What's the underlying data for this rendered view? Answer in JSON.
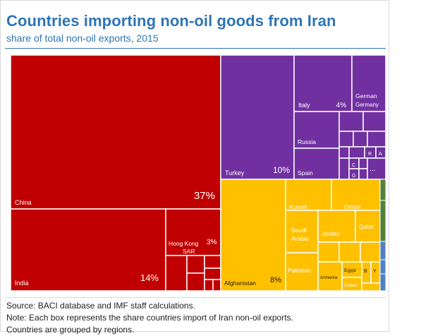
{
  "title": "Countries importing non-oil goods from Iran",
  "subtitle": "share of total non-oil exports, 2015",
  "notes": {
    "source": "Source: BACI database and IMF staff calculations.",
    "note": "Note: Each box represents the share countries import of Iran non-oil exports.",
    "grouping": "Countries are grouped by regions."
  },
  "colors": {
    "east_asia": "#c00000",
    "europe_central_asia": "#7030a0",
    "middle_east_north_africa": "#ffc000",
    "other_green": "#548235",
    "other_blue": "#4f81bd"
  },
  "chart_data": {
    "type": "treemap",
    "title": "Countries importing non-oil goods from Iran",
    "subtitle": "share of total non-oil exports, 2015",
    "groups": [
      {
        "group": "east_asia",
        "items": [
          {
            "name": "China",
            "value": 37,
            "label": "37%"
          },
          {
            "name": "India",
            "value": 14,
            "label": "14%"
          },
          {
            "name": "Hong Kong SAR",
            "value": 3,
            "label": "3%"
          }
        ]
      },
      {
        "group": "europe_central_asia",
        "items": [
          {
            "name": "Turkey",
            "value": 10,
            "label": "10%"
          },
          {
            "name": "Italy",
            "value": 4,
            "label": "4%"
          },
          {
            "name": "Germany",
            "value": 2
          },
          {
            "name": "Russia",
            "value": 2
          },
          {
            "name": "Spain",
            "value": 1.5
          }
        ]
      },
      {
        "group": "middle_east_north_africa",
        "items": [
          {
            "name": "Afghanistan",
            "value": 8,
            "label": "8%"
          },
          {
            "name": "Kuwait",
            "value": 2
          },
          {
            "name": "Oman",
            "value": 2
          },
          {
            "name": "Saudi Arabia",
            "value": 2
          },
          {
            "name": "Jordan",
            "value": 1.5
          },
          {
            "name": "Qatar",
            "value": 1.5
          },
          {
            "name": "Pakistan",
            "value": 1.5
          },
          {
            "name": "Armenia",
            "value": 0.7
          },
          {
            "name": "Egypt",
            "value": 0.6
          },
          {
            "name": "Sudan",
            "value": 0.6
          },
          {
            "name": "B",
            "value": 0.3
          },
          {
            "name": "Y",
            "value": 0.3
          }
        ]
      }
    ]
  },
  "labels": {
    "china": "China",
    "china_pct": "37%",
    "india": "India",
    "india_pct": "14%",
    "hongkong": "Hong Kong",
    "hongkong2": "SAR",
    "hongkong_pct": "3%",
    "turkey": "Turkey",
    "turkey_pct": "10%",
    "italy": "Italy",
    "italy_pct": "4%",
    "german": "German",
    "germany": "Germany",
    "russia": "Russia",
    "spain": "Spain",
    "r": "R",
    "a": "A",
    "c": "C",
    "g": "G",
    "dots": "...",
    "afghanistan": "Afghanistan",
    "afghanistan_pct": "8%",
    "kuwait": "Kuwait",
    "oman": "Oman",
    "saudi": "Saudi",
    "arabia": "Arabia",
    "jordan": "Jordan",
    "qatar": "Qatar",
    "pakistan": "Pakistan",
    "armenia": "Armenia",
    "egypt": "Egypt",
    "sudan": "Sudan",
    "b": "B",
    "y": "Y"
  }
}
